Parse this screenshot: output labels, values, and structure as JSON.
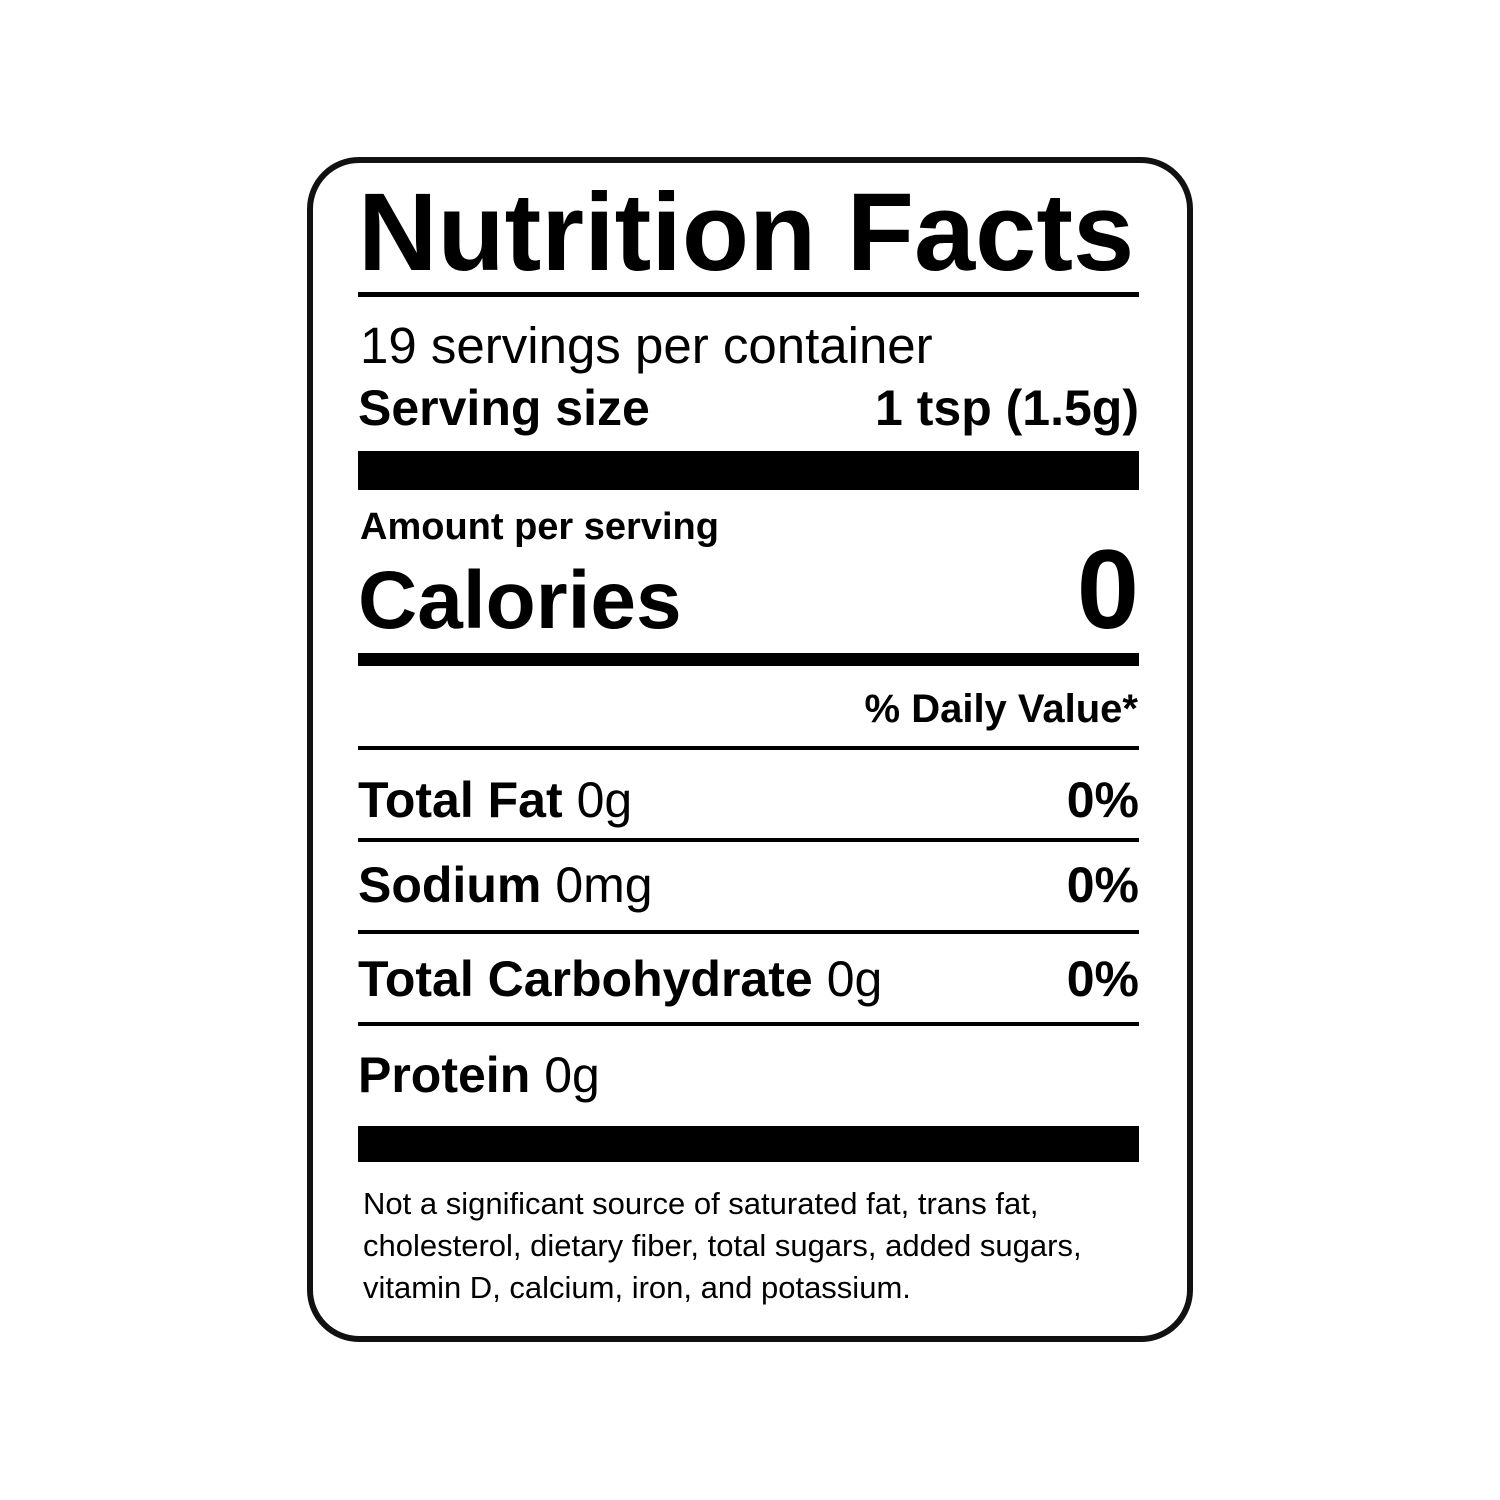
{
  "label": {
    "title": "Nutrition Facts",
    "servings_per_container": "19 servings per container",
    "serving_size_label": "Serving size",
    "serving_size_value": "1 tsp (1.5g)",
    "amount_per_serving": "Amount per serving",
    "calories_label": "Calories",
    "calories_value": "0",
    "daily_value_header": "% Daily Value*",
    "nutrients": [
      {
        "name": "Total Fat",
        "amount": "0g",
        "dv": "0%"
      },
      {
        "name": "Sodium",
        "amount": "0mg",
        "dv": "0%"
      },
      {
        "name": "Total Carbohydrate",
        "amount": "0g",
        "dv": "0%"
      },
      {
        "name": "Protein",
        "amount": "0g",
        "dv": ""
      }
    ],
    "footnote": "Not a significant source of saturated fat, trans fat, cholesterol, dietary fiber, total sugars, added sugars, vitamin D, calcium, iron, and potassium."
  }
}
